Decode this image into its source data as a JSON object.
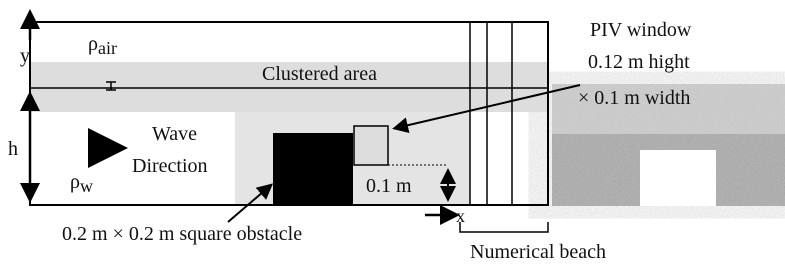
{
  "diagram": {
    "y_axis": "y",
    "rho": "ρ",
    "air": "air",
    "clustered": "Clustered area",
    "h": "h",
    "wave_line1": "Wave",
    "wave_line2": "Direction",
    "w": "w",
    "height_label": "0.1 m",
    "x_axis": "x",
    "obstacle": "0.2 m × 0.2 m square obstacle",
    "piv_line1": "PIV window",
    "piv_line2": "0.12 m hight",
    "piv_line3": "× 0.1 m width",
    "beach": "Numerical beach"
  }
}
